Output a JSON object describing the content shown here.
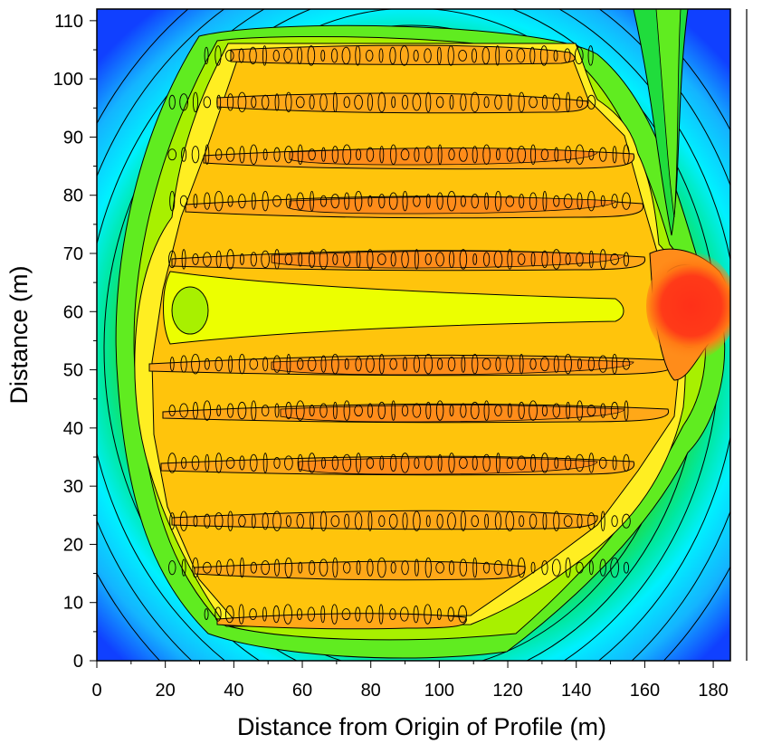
{
  "chart_data": {
    "type": "heatmap",
    "subtype": "filled-contour",
    "title": "",
    "xlabel": "Distance from Origin of Profile (m)",
    "ylabel": "Distance (m)",
    "xlim": [
      0,
      185
    ],
    "ylim": [
      0,
      112
    ],
    "x_ticks": [
      0,
      20,
      40,
      60,
      80,
      100,
      120,
      140,
      160,
      180
    ],
    "y_ticks": [
      0,
      10,
      20,
      30,
      40,
      50,
      60,
      70,
      80,
      90,
      100,
      110
    ],
    "x_tick_labels": [
      "0",
      "20",
      "40",
      "60",
      "80",
      "100",
      "120",
      "140",
      "160",
      "180"
    ],
    "y_tick_labels": [
      "0",
      "10",
      "20",
      "30",
      "40",
      "50",
      "60",
      "70",
      "80",
      "90",
      "100",
      "110"
    ],
    "grid": false,
    "legend": "none",
    "colormap": [
      "#1040ff",
      "#1a78ff",
      "#14b4ff",
      "#00f0ff",
      "#00e8a0",
      "#20dc3c",
      "#60ec20",
      "#a8f000",
      "#ecff00",
      "#ffee22",
      "#ffc40c",
      "#ffa818",
      "#ff8c1a",
      "#ff5a14",
      "#ff3018"
    ],
    "regions": [
      {
        "name": "outer-low",
        "x_range": [
          0,
          185
        ],
        "y_range": [
          0,
          112
        ],
        "level": 1
      },
      {
        "name": "high-core",
        "x_range": [
          30,
          162
        ],
        "y_range": [
          5,
          106
        ],
        "level": 10
      },
      {
        "name": "peak",
        "center": [
          172,
          61
        ],
        "level": 14
      }
    ],
    "stripe_rows_y": [
      8,
      16,
      24,
      34,
      43,
      51,
      69,
      79,
      87,
      96,
      104
    ],
    "yellow_band_y": 60
  }
}
